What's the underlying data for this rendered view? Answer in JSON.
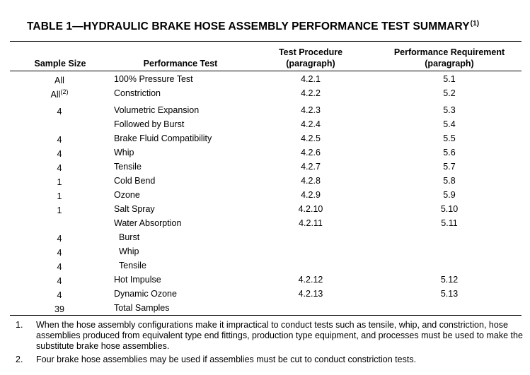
{
  "table": {
    "title": "TABLE 1—HYDRAULIC BRAKE HOSE ASSEMBLY PERFORMANCE TEST SUMMARY",
    "title_note": "(1)",
    "headers": {
      "sample_size": "Sample Size",
      "performance_test": "Performance Test",
      "test_procedure_1": "Test Procedure",
      "test_procedure_2": "(paragraph)",
      "performance_requirement_1": "Performance Requirement",
      "performance_requirement_2": "(paragraph)"
    },
    "rows": [
      {
        "size": "All",
        "size_note": "",
        "test": "100% Pressure Test",
        "procedure": "4.2.1",
        "requirement": "5.1"
      },
      {
        "size": "All",
        "size_note": "(2)",
        "test": "Constriction",
        "procedure": "4.2.2",
        "requirement": "5.2"
      },
      {
        "size": "4",
        "size_note": "",
        "test": "Volumetric Expansion",
        "procedure": "4.2.3",
        "requirement": "5.3"
      },
      {
        "size": "",
        "size_note": "",
        "test": "Followed by Burst",
        "procedure": "4.2.4",
        "requirement": "5.4"
      },
      {
        "size": "4",
        "size_note": "",
        "test": "Brake Fluid Compatibility",
        "procedure": "4.2.5",
        "requirement": "5.5"
      },
      {
        "size": "4",
        "size_note": "",
        "test": "Whip",
        "procedure": "4.2.6",
        "requirement": "5.6"
      },
      {
        "size": "4",
        "size_note": "",
        "test": "Tensile",
        "procedure": "4.2.7",
        "requirement": "5.7"
      },
      {
        "size": "1",
        "size_note": "",
        "test": "Cold Bend",
        "procedure": "4.2.8",
        "requirement": "5.8"
      },
      {
        "size": "1",
        "size_note": "",
        "test": "Ozone",
        "procedure": "4.2.9",
        "requirement": "5.9"
      },
      {
        "size": "1",
        "size_note": "",
        "test": "Salt Spray",
        "procedure": "4.2.10",
        "requirement": "5.10"
      },
      {
        "size": "",
        "size_note": "",
        "test": "Water Absorption",
        "procedure": "4.2.11",
        "requirement": "5.11"
      },
      {
        "size": "4",
        "size_note": "",
        "test": "Burst",
        "procedure": "",
        "requirement": "",
        "indent": true
      },
      {
        "size": "4",
        "size_note": "",
        "test": "Whip",
        "procedure": "",
        "requirement": "",
        "indent": true
      },
      {
        "size": "4",
        "size_note": "",
        "test": "Tensile",
        "procedure": "",
        "requirement": "",
        "indent": true
      },
      {
        "size": "4",
        "size_note": "",
        "test": "Hot Impulse",
        "procedure": "4.2.12",
        "requirement": "5.12"
      },
      {
        "size": "4",
        "size_note": "",
        "test": "Dynamic Ozone",
        "procedure": "4.2.13",
        "requirement": "5.13"
      },
      {
        "size": "39",
        "size_note": "",
        "test": "Total Samples",
        "procedure": "",
        "requirement": ""
      }
    ],
    "footnotes": [
      {
        "num": "1.",
        "text": "When the hose assembly configurations make it impractical to conduct tests such as tensile, whip, and constriction, hose assemblies produced from equivalent type end fittings, production type equipment, and processes must be used to make the substitute brake hose assemblies."
      },
      {
        "num": "2.",
        "text": "Four brake hose assemblies may be used if assemblies must be cut to conduct constriction tests."
      }
    ]
  }
}
